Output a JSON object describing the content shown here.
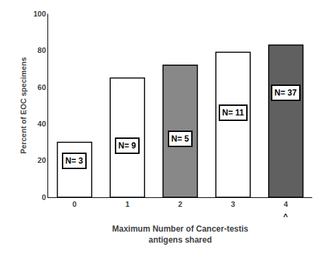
{
  "chart_data": {
    "type": "bar",
    "categories": [
      "0",
      "1",
      "2",
      "3",
      "4"
    ],
    "values": [
      30,
      65,
      72,
      79,
      83
    ],
    "colors": [
      "white",
      "white",
      "#888888",
      "white",
      "#606060"
    ],
    "xlabel": "Maximum Number of Cancer-testis\nantigens shared",
    "ylabel": "Percent of EOC specimens",
    "ylim": [
      0,
      100
    ],
    "yticks": [
      0,
      20,
      40,
      60,
      80,
      100
    ],
    "grid": false,
    "annotations": [
      {
        "text": "N= 3",
        "category": "0",
        "y": 20
      },
      {
        "text": "N= 9",
        "category": "1",
        "y": 28
      },
      {
        "text": "N= 5",
        "category": "2",
        "y": 32
      },
      {
        "text": "N= 11",
        "category": "3",
        "y": 46
      },
      {
        "text": "N= 37",
        "category": "4",
        "y": 57
      },
      {
        "text": "^",
        "category": "4"
      }
    ]
  }
}
